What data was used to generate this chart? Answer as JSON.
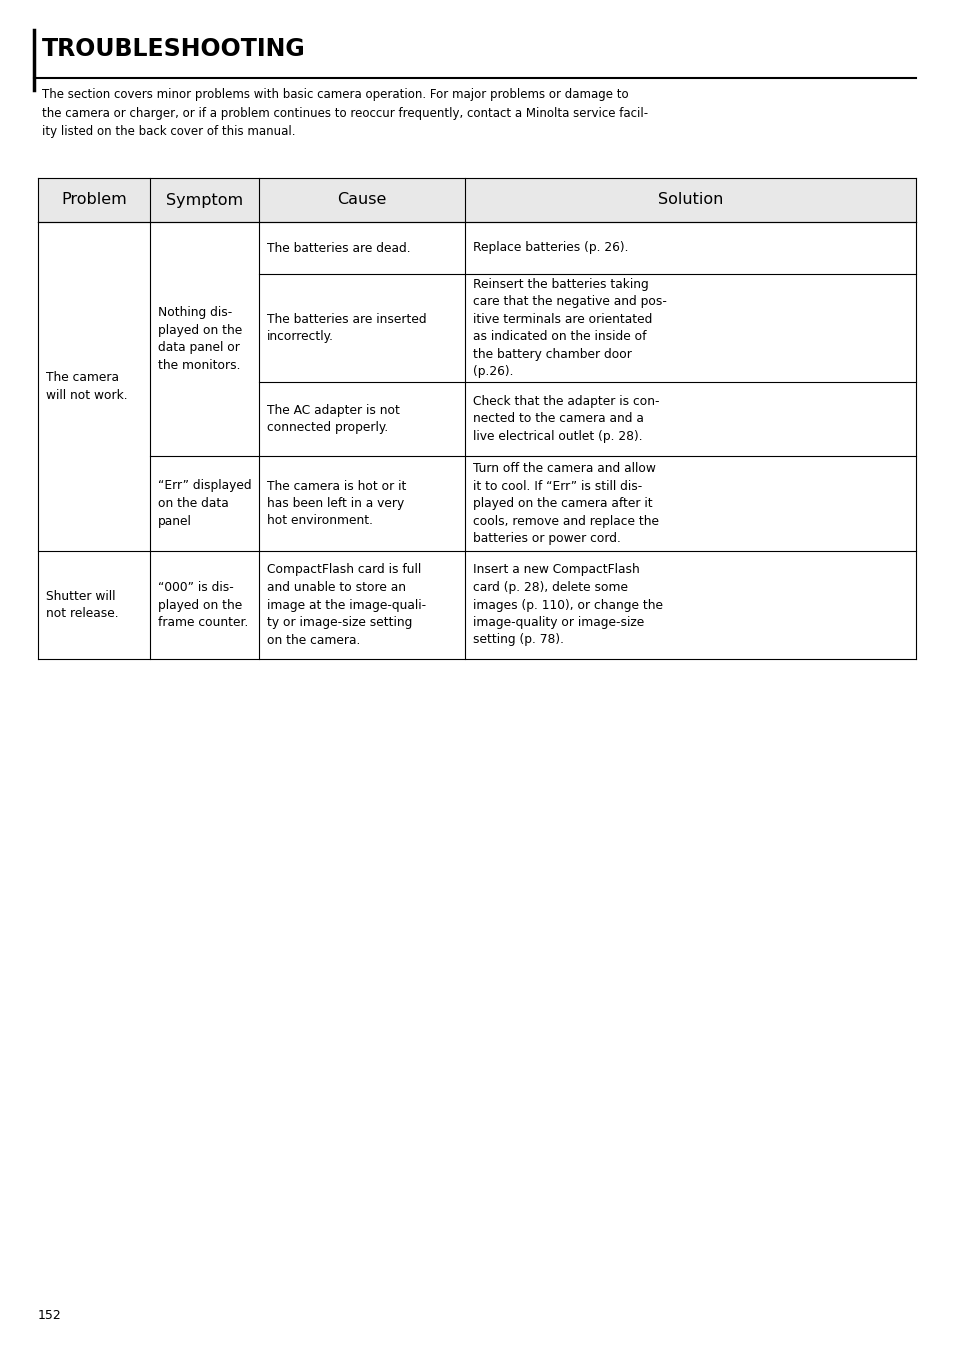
{
  "title": "TROUBLESHOOTING",
  "intro_text": "The section covers minor problems with basic camera operation. For major problems or damage to\nthe camera or charger, or if a problem continues to reoccur frequently, contact a Minolta service facil-\nity listed on the back cover of this manual.",
  "page_number": "152",
  "col_headers": [
    "Problem",
    "Symptom",
    "Cause",
    "Solution"
  ],
  "header_bg": "#e8e8e8",
  "causes": [
    "The batteries are dead.",
    "The batteries are inserted\nincorrectly.",
    "The AC adapter is not\nconnected properly.",
    "The camera is hot or it\nhas been left in a very\nhot environment.",
    "CompactFlash card is full\nand unable to store an\nimage at the image-quali-\nty or image-size setting\non the camera."
  ],
  "solutions": [
    "Replace batteries (p. 26).",
    "Reinsert the batteries taking\ncare that the negative and pos-\nitive terminals are orientated\nas indicated on the inside of\nthe battery chamber door\n(p.26).",
    "Check that the adapter is con-\nnected to the camera and a\nlive electrical outlet (p. 28).",
    "Turn off the camera and allow\nit to cool. If “Err” is still dis-\nplayed on the camera after it\ncools, remove and replace the\nbatteries or power cord.",
    "Insert a new CompactFlash\ncard (p. 28), delete some\nimages (p. 110), or change the\nimage-quality or image-size\nsetting (p. 78)."
  ],
  "symptoms_merged": [
    "Nothing dis-\nplayed on the\ndata panel or\nthe monitors.",
    "“Err” displayed\non the data\npanel",
    "“000” is dis-\nplayed on the\nframe counter."
  ],
  "problems_merged": [
    "The camera\nwill not work.",
    "Shutter will\nnot release."
  ]
}
